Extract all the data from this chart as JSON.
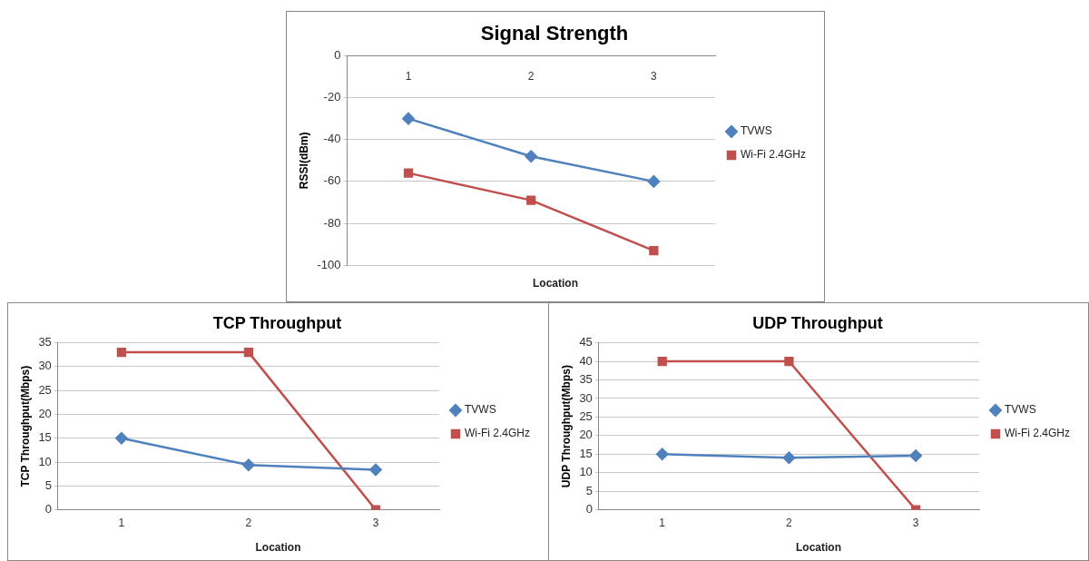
{
  "chart_data": [
    {
      "type": "line",
      "title": "Signal Strength",
      "xlabel": "Location",
      "ylabel": "RSSI(dBm)",
      "categories": [
        "1",
        "2",
        "3"
      ],
      "series": [
        {
          "name": "TVWS",
          "color": "#4f81bd",
          "marker": "diamond",
          "values": [
            -30,
            -48,
            -60
          ]
        },
        {
          "name": "Wi-Fi 2.4GHz",
          "color": "#c0504d",
          "marker": "square",
          "values": [
            -56,
            -69,
            -93
          ]
        }
      ],
      "ylim": [
        -100,
        0
      ],
      "yticks": [
        -100,
        -80,
        -60,
        -40,
        -20,
        0
      ],
      "grid": "y",
      "legend": "right"
    },
    {
      "type": "line",
      "title": "TCP Throughput",
      "xlabel": "Location",
      "ylabel": "TCP Throughput(Mbps)",
      "categories": [
        "1",
        "2",
        "3"
      ],
      "series": [
        {
          "name": "TVWS",
          "color": "#4f81bd",
          "marker": "diamond",
          "values": [
            15,
            9.4,
            8.4
          ]
        },
        {
          "name": "Wi-Fi 2.4GHz",
          "color": "#c0504d",
          "marker": "square",
          "values": [
            33,
            33,
            0
          ]
        }
      ],
      "ylim": [
        0,
        35
      ],
      "yticks": [
        0,
        5,
        10,
        15,
        20,
        25,
        30,
        35
      ],
      "grid": "y",
      "legend": "right"
    },
    {
      "type": "line",
      "title": "UDP Throughput",
      "xlabel": "Location",
      "ylabel": "UDP Throughput(Mbps)",
      "categories": [
        "1",
        "2",
        "3"
      ],
      "series": [
        {
          "name": "TVWS",
          "color": "#4f81bd",
          "marker": "diamond",
          "values": [
            15,
            14,
            14.6
          ]
        },
        {
          "name": "Wi-Fi 2.4GHz",
          "color": "#c0504d",
          "marker": "square",
          "values": [
            40,
            40,
            0
          ]
        }
      ],
      "ylim": [
        0,
        45
      ],
      "yticks": [
        0,
        5,
        10,
        15,
        20,
        25,
        30,
        35,
        40,
        45
      ],
      "grid": "y",
      "legend": "right"
    }
  ]
}
